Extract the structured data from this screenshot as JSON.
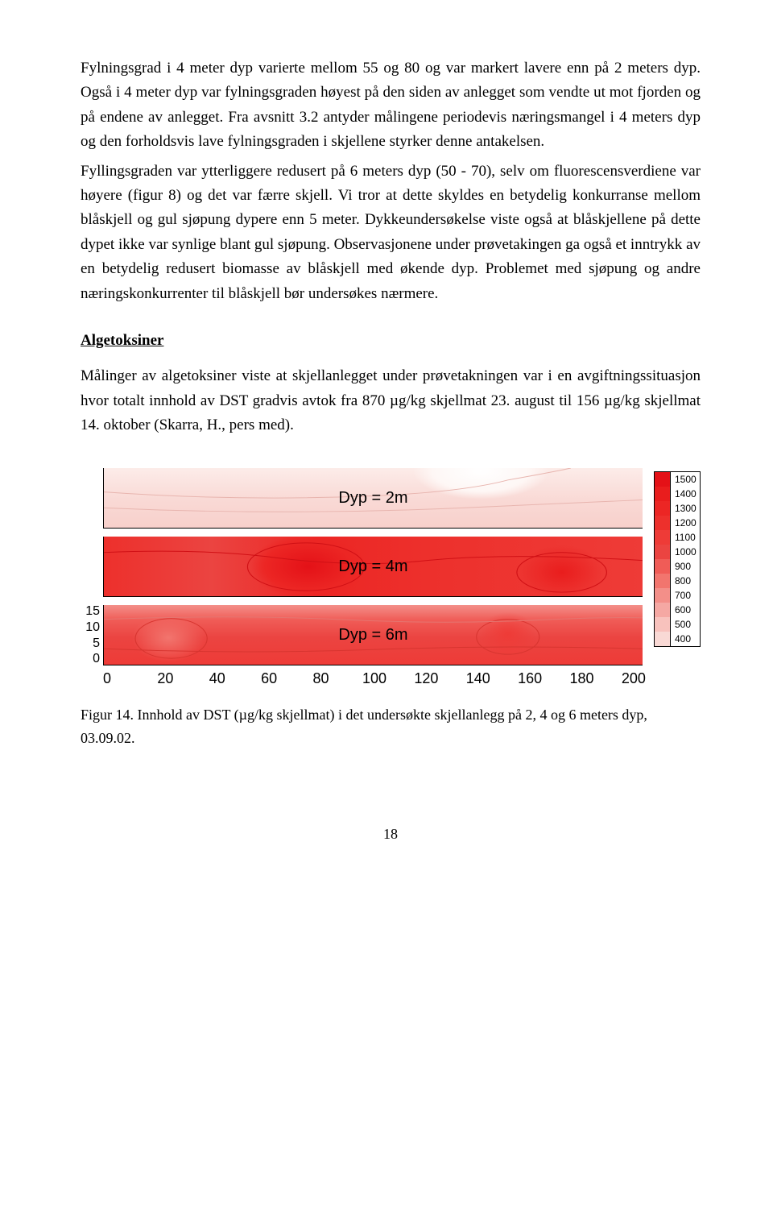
{
  "paragraphs": {
    "p1": "Fylningsgrad i 4 meter dyp varierte mellom 55 og 80 og var markert lavere enn på 2 meters dyp. Også i 4 meter dyp var fylningsgraden høyest på den siden av anlegget som vendte ut mot fjorden og på endene av anlegget. Fra avsnitt 3.2 antyder målingene periodevis næringsmangel i 4 meters dyp og den forholdsvis lave fylningsgraden i skjellene styrker denne antakelsen.",
    "p2": " Fyllingsgraden var ytterliggere redusert på 6 meters dyp (50 - 70), selv om fluorescensverdiene var høyere (figur 8) og det var færre skjell. Vi tror at dette skyldes en betydelig konkurranse mellom blåskjell og gul sjøpung dypere enn 5 meter. Dykkeundersøkelse viste også at blåskjellene på dette dypet ikke var synlige blant gul sjøpung. Observasjonene under prøvetakingen ga også et inntrykk av en betydelig redusert biomasse av blåskjell med økende dyp. Problemet med sjøpung og andre næringskonkurrenter til blåskjell bør undersøkes nærmere."
  },
  "section_heading": "Algetoksiner",
  "paragraphs2": {
    "p3": "Målinger av algetoksiner viste at skjellanlegget under prøvetakningen var i en avgiftningssituasjon hvor totalt innhold av DST gradvis avtok fra 870 µg/kg skjellmat 23. august til 156 µg/kg skjellmat 14. oktober (Skarra, H., pers med)."
  },
  "chart": {
    "type": "contour-panels",
    "panels": [
      {
        "label": "Dyp = 2m",
        "bg_gradient": [
          "#fef4f2",
          "#fbe0dd",
          "#f9d9d5",
          "#fef4f2"
        ],
        "bg_type": "light"
      },
      {
        "label": "Dyp = 4m",
        "bg_gradient": [
          "#ee3b37",
          "#ec2624",
          "#eb4441",
          "#ed302c"
        ],
        "bg_type": "dark"
      },
      {
        "label": "Dyp = 6m",
        "bg_gradient": [
          "#f38f89",
          "#ee3b37",
          "#f05c57",
          "#eb4441"
        ],
        "bg_type": "midred"
      }
    ],
    "xaxis": {
      "min": 0,
      "max": 200,
      "ticks": [
        "0",
        "20",
        "40",
        "60",
        "80",
        "100",
        "120",
        "140",
        "160",
        "180",
        "200"
      ]
    },
    "yaxis": {
      "min": 0,
      "max": 15,
      "ticks": [
        "15",
        "10",
        "5",
        "0"
      ]
    },
    "legend": [
      {
        "v": "1500",
        "c": "#e41117"
      },
      {
        "v": "1400",
        "c": "#e91d1d"
      },
      {
        "v": "1300",
        "c": "#ec2624"
      },
      {
        "v": "1200",
        "c": "#ed302c"
      },
      {
        "v": "1100",
        "c": "#ee3b37"
      },
      {
        "v": "1000",
        "c": "#eb4441"
      },
      {
        "v": "900",
        "c": "#f05c57"
      },
      {
        "v": "800",
        "c": "#f2756e"
      },
      {
        "v": "700",
        "c": "#f38f89"
      },
      {
        "v": "600",
        "c": "#f5a8a3"
      },
      {
        "v": "500",
        "c": "#f8c2bd"
      },
      {
        "v": "400",
        "c": "#f9d9d5"
      }
    ]
  },
  "caption": "Figur 14. Innhold av DST  (µg/kg skjellmat) i det undersøkte skjellanlegg på 2, 4 og 6 meters dyp, 03.09.02.",
  "page_number": "18"
}
